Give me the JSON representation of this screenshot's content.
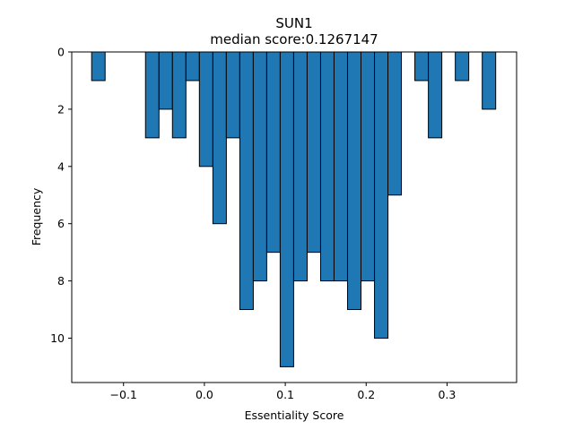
{
  "chart_data": {
    "type": "bar",
    "title": "SUN1",
    "subtitle": "median score:0.1267147",
    "xlabel": "Essentiality Score",
    "ylabel": "Frequency",
    "y_inverted": true,
    "xlim": [
      -0.164,
      0.386
    ],
    "ylim": [
      0,
      11.55
    ],
    "bar_color": "#1f77b4",
    "edge_color": "#000000",
    "bin_width": 0.01665,
    "x_ticks": [
      -0.1,
      0.0,
      0.1,
      0.2,
      0.3
    ],
    "x_tick_labels": [
      "−0.1",
      "0.0",
      "0.1",
      "0.2",
      "0.3"
    ],
    "y_ticks": [
      0,
      2,
      4,
      6,
      8,
      10
    ],
    "y_tick_labels": [
      "0",
      "2",
      "4",
      "6",
      "8",
      "10"
    ],
    "bins": [
      {
        "x": -0.1394,
        "count": 1
      },
      {
        "x": -0.1227,
        "count": 0
      },
      {
        "x": -0.1061,
        "count": 0
      },
      {
        "x": -0.0894,
        "count": 0
      },
      {
        "x": -0.0728,
        "count": 3
      },
      {
        "x": -0.0561,
        "count": 2
      },
      {
        "x": -0.0395,
        "count": 3
      },
      {
        "x": -0.0228,
        "count": 1
      },
      {
        "x": -0.0062,
        "count": 4
      },
      {
        "x": 0.0105,
        "count": 6
      },
      {
        "x": 0.0271,
        "count": 3
      },
      {
        "x": 0.0438,
        "count": 9
      },
      {
        "x": 0.0604,
        "count": 8
      },
      {
        "x": 0.0771,
        "count": 7
      },
      {
        "x": 0.0937,
        "count": 11
      },
      {
        "x": 0.1104,
        "count": 8
      },
      {
        "x": 0.127,
        "count": 7
      },
      {
        "x": 0.1437,
        "count": 8
      },
      {
        "x": 0.1603,
        "count": 8
      },
      {
        "x": 0.177,
        "count": 9
      },
      {
        "x": 0.1936,
        "count": 8
      },
      {
        "x": 0.2103,
        "count": 10
      },
      {
        "x": 0.2269,
        "count": 5
      },
      {
        "x": 0.2436,
        "count": 0
      },
      {
        "x": 0.2602,
        "count": 1
      },
      {
        "x": 0.2769,
        "count": 3
      },
      {
        "x": 0.2935,
        "count": 0
      },
      {
        "x": 0.3102,
        "count": 1
      },
      {
        "x": 0.3268,
        "count": 0
      },
      {
        "x": 0.3435,
        "count": 2
      }
    ]
  }
}
